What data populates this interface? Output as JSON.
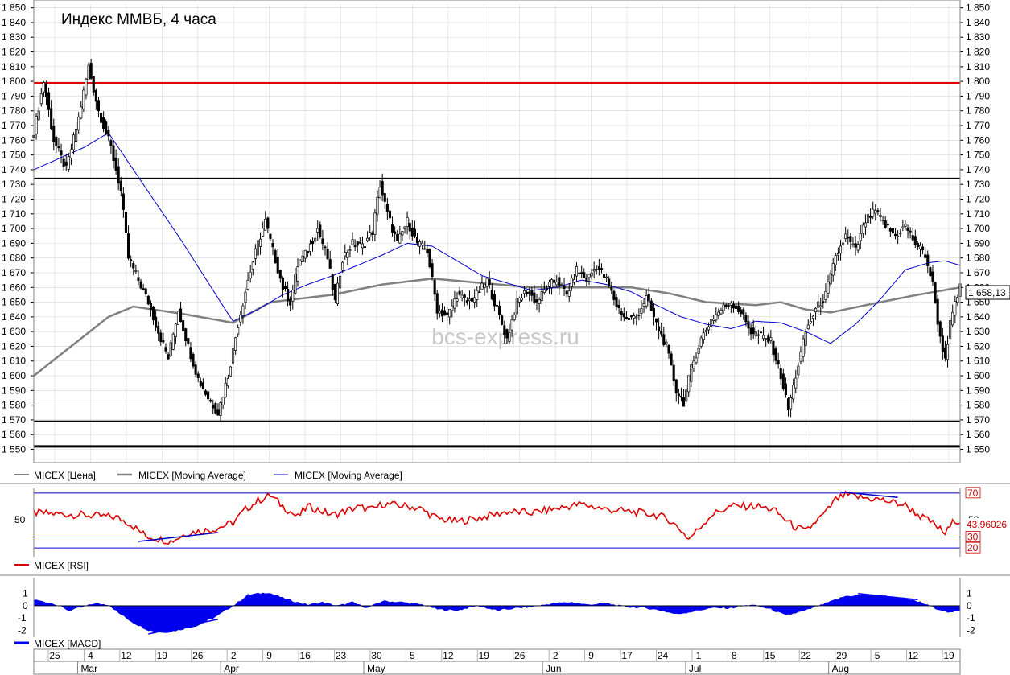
{
  "title": "Индекс ММВБ, 4 часа",
  "watermark": "bcs-express.ru",
  "colors": {
    "candle": "#000000",
    "ma_slow": "#808080",
    "ma_fast": "#0000cc",
    "resistance": "#e00000",
    "rsi": "#dd0000",
    "rsi_levels": "#0000cc",
    "macd": "#0000ee",
    "grid": "#d8d8d8"
  },
  "legend": {
    "price": "MICEX [Цена]",
    "ma1": "MICEX [Moving Average]",
    "ma2": "MICEX [Moving Average]",
    "rsi": "MICEX [RSI]",
    "macd": "MICEX [MACD]"
  },
  "last_price_label": "1 658,13",
  "rsi_value_label": "43,96026",
  "chart_data": [
    {
      "type": "candlestick",
      "title": "Индекс ММВБ, 4 часа",
      "ylim": [
        1547,
        1852
      ],
      "yticks": [
        1550,
        1560,
        1570,
        1580,
        1590,
        1600,
        1610,
        1620,
        1630,
        1640,
        1650,
        1660,
        1670,
        1680,
        1690,
        1700,
        1710,
        1720,
        1730,
        1740,
        1750,
        1760,
        1770,
        1780,
        1790,
        1800,
        1810,
        1820,
        1830,
        1840,
        1850
      ],
      "ytick_labels": [
        "1 550",
        "1 560",
        "1 570",
        "1 580",
        "1 590",
        "1 600",
        "1 610",
        "1 620",
        "1 630",
        "1 640",
        "1 650",
        "1 660",
        "1 670",
        "1 680",
        "1 690",
        "1 700",
        "1 710",
        "1 720",
        "1 730",
        "1 740",
        "1 750",
        "1 760",
        "1 770",
        "1 780",
        "1 790",
        "1 800",
        "1 810",
        "1 820",
        "1 830",
        "1 840",
        "1 850"
      ],
      "x_day_labels": [
        "25",
        "4",
        "12",
        "19",
        "26",
        "2",
        "9",
        "16",
        "23",
        "30",
        "5",
        "12",
        "19",
        "26",
        "2",
        "9",
        "17",
        "24",
        "1",
        "8",
        "15",
        "22",
        "29",
        "5",
        "12",
        "19"
      ],
      "x_month_labels": [
        "Mar",
        "Apr",
        "May",
        "Jun",
        "Jul",
        "Aug"
      ],
      "price_path": [
        [
          0,
          1765
        ],
        [
          4,
          1800
        ],
        [
          8,
          1760
        ],
        [
          13,
          1740
        ],
        [
          18,
          1775
        ],
        [
          22,
          1810
        ],
        [
          26,
          1780
        ],
        [
          31,
          1755
        ],
        [
          35,
          1725
        ],
        [
          38,
          1680
        ],
        [
          42,
          1665
        ],
        [
          46,
          1650
        ],
        [
          50,
          1630
        ],
        [
          54,
          1612
        ],
        [
          58,
          1645
        ],
        [
          62,
          1620
        ],
        [
          66,
          1598
        ],
        [
          70,
          1585
        ],
        [
          74,
          1575
        ],
        [
          78,
          1600
        ],
        [
          82,
          1635
        ],
        [
          86,
          1665
        ],
        [
          90,
          1690
        ],
        [
          93,
          1705
        ],
        [
          96,
          1685
        ],
        [
          100,
          1660
        ],
        [
          103,
          1650
        ],
        [
          106,
          1675
        ],
        [
          110,
          1685
        ],
        [
          114,
          1700
        ],
        [
          118,
          1680
        ],
        [
          121,
          1650
        ],
        [
          124,
          1680
        ],
        [
          128,
          1690
        ],
        [
          132,
          1688
        ],
        [
          136,
          1698
        ],
        [
          139,
          1730
        ],
        [
          142,
          1710
        ],
        [
          146,
          1690
        ],
        [
          150,
          1705
        ],
        [
          154,
          1690
        ],
        [
          158,
          1685
        ],
        [
          162,
          1645
        ],
        [
          166,
          1640
        ],
        [
          170,
          1655
        ],
        [
          174,
          1650
        ],
        [
          178,
          1655
        ],
        [
          182,
          1665
        ],
        [
          186,
          1645
        ],
        [
          190,
          1625
        ],
        [
          194,
          1650
        ],
        [
          198,
          1658
        ],
        [
          202,
          1650
        ],
        [
          206,
          1660
        ],
        [
          210,
          1665
        ],
        [
          214,
          1655
        ],
        [
          218,
          1672
        ],
        [
          222,
          1665
        ],
        [
          226,
          1675
        ],
        [
          230,
          1665
        ],
        [
          234,
          1648
        ],
        [
          238,
          1638
        ],
        [
          242,
          1640
        ],
        [
          246,
          1653
        ],
        [
          250,
          1635
        ],
        [
          254,
          1620
        ],
        [
          258,
          1590
        ],
        [
          261,
          1582
        ],
        [
          264,
          1605
        ],
        [
          268,
          1625
        ],
        [
          272,
          1638
        ],
        [
          276,
          1645
        ],
        [
          280,
          1650
        ],
        [
          284,
          1643
        ],
        [
          288,
          1630
        ],
        [
          292,
          1627
        ],
        [
          296,
          1623
        ],
        [
          300,
          1600
        ],
        [
          303,
          1577
        ],
        [
          306,
          1600
        ],
        [
          310,
          1630
        ],
        [
          314,
          1645
        ],
        [
          318,
          1655
        ],
        [
          322,
          1680
        ],
        [
          326,
          1695
        ],
        [
          330,
          1685
        ],
        [
          334,
          1705
        ],
        [
          338,
          1712
        ],
        [
          342,
          1702
        ],
        [
          346,
          1695
        ],
        [
          350,
          1702
        ],
        [
          354,
          1690
        ],
        [
          358,
          1682
        ],
        [
          361,
          1662
        ],
        [
          364,
          1625
        ],
        [
          366,
          1612
        ],
        [
          368,
          1635
        ],
        [
          370,
          1648
        ],
        [
          372,
          1660
        ]
      ],
      "ma_slow_path": [
        [
          0,
          1600
        ],
        [
          30,
          1640
        ],
        [
          40,
          1647
        ],
        [
          60,
          1642
        ],
        [
          80,
          1636
        ],
        [
          95,
          1650
        ],
        [
          120,
          1655
        ],
        [
          140,
          1662
        ],
        [
          160,
          1666
        ],
        [
          180,
          1663
        ],
        [
          200,
          1660
        ],
        [
          215,
          1660
        ],
        [
          240,
          1660
        ],
        [
          255,
          1656
        ],
        [
          270,
          1650
        ],
        [
          290,
          1648
        ],
        [
          300,
          1650
        ],
        [
          310,
          1645
        ],
        [
          320,
          1643
        ],
        [
          340,
          1650
        ],
        [
          355,
          1655
        ],
        [
          372,
          1660
        ]
      ],
      "ma_fast_path": [
        [
          0,
          1740
        ],
        [
          20,
          1755
        ],
        [
          30,
          1765
        ],
        [
          40,
          1740
        ],
        [
          60,
          1690
        ],
        [
          75,
          1650
        ],
        [
          80,
          1637
        ],
        [
          90,
          1645
        ],
        [
          100,
          1655
        ],
        [
          110,
          1662
        ],
        [
          120,
          1668
        ],
        [
          130,
          1675
        ],
        [
          140,
          1682
        ],
        [
          150,
          1690
        ],
        [
          160,
          1688
        ],
        [
          170,
          1678
        ],
        [
          180,
          1668
        ],
        [
          190,
          1663
        ],
        [
          200,
          1658
        ],
        [
          210,
          1660
        ],
        [
          220,
          1665
        ],
        [
          230,
          1662
        ],
        [
          240,
          1657
        ],
        [
          250,
          1648
        ],
        [
          260,
          1640
        ],
        [
          270,
          1635
        ],
        [
          280,
          1632
        ],
        [
          290,
          1637
        ],
        [
          300,
          1636
        ],
        [
          305,
          1633
        ],
        [
          310,
          1630
        ],
        [
          320,
          1622
        ],
        [
          330,
          1635
        ],
        [
          340,
          1652
        ],
        [
          350,
          1672
        ],
        [
          360,
          1677
        ],
        [
          366,
          1678
        ],
        [
          372,
          1675
        ]
      ],
      "horizontal_lines": [
        1734,
        1569,
        1552
      ],
      "resistance_line": 1799
    },
    {
      "type": "line",
      "name": "MICEX [RSI]",
      "ylim": [
        15,
        75
      ],
      "levels": [
        70,
        30,
        20
      ],
      "level_labels": [
        "70",
        "30",
        "20"
      ],
      "midline_label": "50",
      "rsi_path": [
        [
          0,
          52
        ],
        [
          20,
          50
        ],
        [
          33,
          48
        ],
        [
          38,
          43
        ],
        [
          45,
          31
        ],
        [
          55,
          26
        ],
        [
          62,
          34
        ],
        [
          72,
          37
        ],
        [
          80,
          43
        ],
        [
          85,
          55
        ],
        [
          90,
          63
        ],
        [
          95,
          68
        ],
        [
          100,
          58
        ],
        [
          106,
          48
        ],
        [
          110,
          58
        ],
        [
          120,
          50
        ],
        [
          130,
          57
        ],
        [
          136,
          55
        ],
        [
          140,
          60
        ],
        [
          150,
          58
        ],
        [
          155,
          56
        ],
        [
          162,
          47
        ],
        [
          170,
          44
        ],
        [
          180,
          48
        ],
        [
          190,
          53
        ],
        [
          200,
          52
        ],
        [
          210,
          56
        ],
        [
          220,
          60
        ],
        [
          230,
          55
        ],
        [
          240,
          53
        ],
        [
          250,
          50
        ],
        [
          255,
          46
        ],
        [
          260,
          36
        ],
        [
          263,
          28
        ],
        [
          268,
          40
        ],
        [
          272,
          50
        ],
        [
          280,
          58
        ],
        [
          290,
          58
        ],
        [
          297,
          55
        ],
        [
          305,
          40
        ],
        [
          310,
          35
        ],
        [
          314,
          44
        ],
        [
          318,
          52
        ],
        [
          322,
          64
        ],
        [
          326,
          68
        ],
        [
          332,
          66
        ],
        [
          340,
          64
        ],
        [
          350,
          59
        ],
        [
          356,
          49
        ],
        [
          360,
          44
        ],
        [
          364,
          37
        ],
        [
          366,
          33
        ],
        [
          370,
          46
        ],
        [
          372,
          44
        ]
      ],
      "divergence_lines": [
        [
          [
            42,
            26
          ],
          [
            74,
            34
          ]
        ],
        [
          [
            324,
            71
          ],
          [
            347,
            66
          ]
        ]
      ],
      "last_value": 43.96026
    },
    {
      "type": "area",
      "name": "MICEX [MACD]",
      "ylim": [
        -2.3,
        1.9
      ],
      "ytick_labels": [
        "1",
        "0",
        "-1",
        "-2"
      ],
      "macd_path": [
        [
          0,
          0.5
        ],
        [
          8,
          0.2
        ],
        [
          14,
          -0.4
        ],
        [
          20,
          -0.1
        ],
        [
          24,
          0.2
        ],
        [
          30,
          0.1
        ],
        [
          34,
          -0.6
        ],
        [
          40,
          -1.4
        ],
        [
          46,
          -2.0
        ],
        [
          52,
          -2.2
        ],
        [
          58,
          -2.0
        ],
        [
          66,
          -1.6
        ],
        [
          74,
          -0.8
        ],
        [
          80,
          0.0
        ],
        [
          86,
          0.9
        ],
        [
          94,
          1.1
        ],
        [
          102,
          0.5
        ],
        [
          110,
          0.1
        ],
        [
          116,
          0.3
        ],
        [
          122,
          0.0
        ],
        [
          128,
          0.3
        ],
        [
          134,
          -0.2
        ],
        [
          140,
          0.4
        ],
        [
          148,
          0.3
        ],
        [
          156,
          0.1
        ],
        [
          162,
          -0.3
        ],
        [
          170,
          -0.4
        ],
        [
          178,
          0.0
        ],
        [
          186,
          -0.4
        ],
        [
          194,
          -0.2
        ],
        [
          200,
          -0.1
        ],
        [
          208,
          0.2
        ],
        [
          216,
          0.3
        ],
        [
          222,
          0.1
        ],
        [
          230,
          0.2
        ],
        [
          238,
          -0.1
        ],
        [
          246,
          -0.2
        ],
        [
          252,
          -0.4
        ],
        [
          258,
          -0.7
        ],
        [
          264,
          -0.5
        ],
        [
          272,
          -0.2
        ],
        [
          280,
          -0.2
        ],
        [
          288,
          0.1
        ],
        [
          296,
          -0.3
        ],
        [
          302,
          -0.8
        ],
        [
          310,
          -0.4
        ],
        [
          318,
          0.2
        ],
        [
          326,
          0.8
        ],
        [
          334,
          0.9
        ],
        [
          342,
          0.8
        ],
        [
          350,
          0.6
        ],
        [
          356,
          0.3
        ],
        [
          362,
          -0.2
        ],
        [
          368,
          -0.6
        ],
        [
          372,
          -0.4
        ]
      ],
      "divergence_lines": [
        [
          [
            46,
            -2.3
          ],
          [
            74,
            -1.1
          ]
        ],
        [
          [
            331,
            1.0
          ],
          [
            355,
            0.5
          ]
        ]
      ]
    }
  ]
}
